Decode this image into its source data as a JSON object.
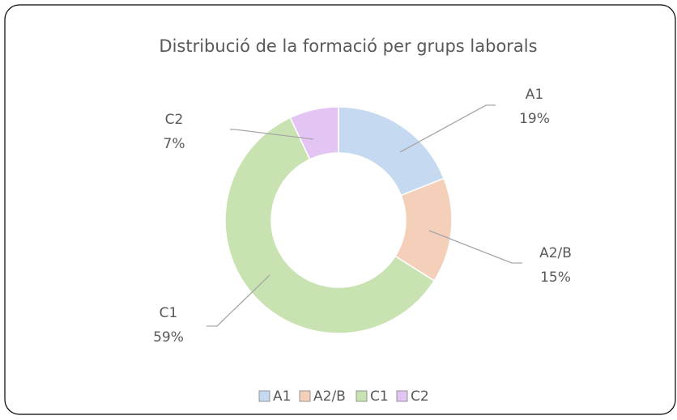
{
  "chart_data": {
    "type": "donut",
    "title": "Distribució de la formació per grups laborals",
    "categories": [
      "A1",
      "A2/B",
      "C1",
      "C2"
    ],
    "values": [
      19,
      15,
      59,
      7
    ],
    "value_labels": [
      "19%",
      "15%",
      "59%",
      "7%"
    ],
    "colors": [
      "#c5d9f1",
      "#f4d0bb",
      "#c8e2b2",
      "#e3c4f2"
    ],
    "legend": "bottom"
  }
}
